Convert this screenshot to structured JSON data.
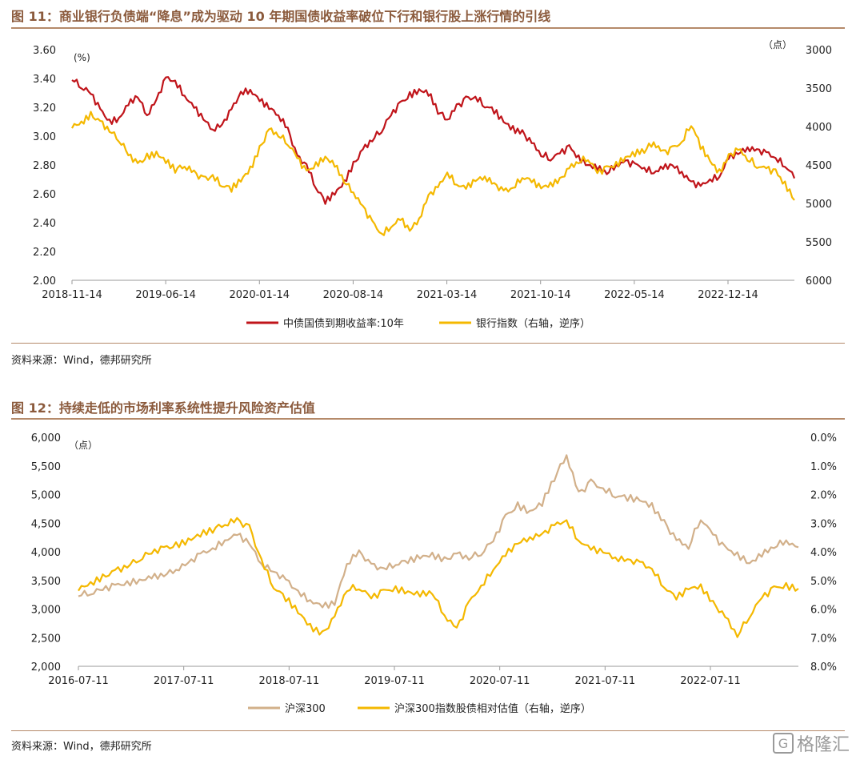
{
  "figures": [
    {
      "title": "图 11：商业银行负债端“降息”成为驱动 10 年期国债收益率破位下行和银行股上涨行情的引线",
      "source": "资料来源：Wind，德邦研究所"
    },
    {
      "title": "图 12：持续走低的市场利率系统性提升风险资产估值",
      "source": "资料来源：Wind，德邦研究所"
    }
  ],
  "watermark": {
    "icon": "gelonghui-logo-icon",
    "text": "格隆汇"
  },
  "colors": {
    "red": "#c0141a",
    "yellow": "#f4b800",
    "tan": "#d2b08a",
    "title": "#8b5a3c",
    "axis": "#999999"
  },
  "chart_data": [
    {
      "type": "line",
      "left_unit": "(%)",
      "right_unit": "（点）",
      "ylim_left": [
        2.0,
        3.6
      ],
      "yticks_left": [
        "3.60",
        "3.40",
        "3.20",
        "3.00",
        "2.80",
        "2.60",
        "2.40",
        "2.20",
        "2.00"
      ],
      "ylim_right_reversed": [
        3000,
        6000
      ],
      "yticks_right": [
        "3000",
        "3500",
        "4000",
        "4500",
        "5000",
        "5500",
        "6000"
      ],
      "x_ticks": [
        "2018-11-14",
        "2019-06-14",
        "2020-01-14",
        "2020-08-14",
        "2021-03-14",
        "2021-10-14",
        "2022-05-14",
        "2022-12-14"
      ],
      "series": [
        {
          "name": "中债国债到期收益率:10年",
          "axis": "left",
          "color": "#c0141a",
          "values": [
            3.4,
            3.35,
            3.3,
            3.18,
            3.1,
            3.12,
            3.22,
            3.28,
            3.15,
            3.25,
            3.4,
            3.38,
            3.28,
            3.2,
            3.12,
            3.05,
            3.08,
            3.18,
            3.3,
            3.32,
            3.25,
            3.2,
            3.15,
            3.05,
            2.85,
            2.8,
            2.65,
            2.55,
            2.6,
            2.68,
            2.8,
            2.9,
            2.98,
            3.05,
            3.15,
            3.22,
            3.28,
            3.32,
            3.3,
            3.18,
            3.12,
            3.2,
            3.25,
            3.27,
            3.22,
            3.18,
            3.1,
            3.05,
            3.02,
            2.95,
            2.88,
            2.85,
            2.88,
            2.92,
            2.85,
            2.8,
            2.78,
            2.75,
            2.8,
            2.82,
            2.8,
            2.78,
            2.75,
            2.78,
            2.8,
            2.75,
            2.68,
            2.65,
            2.7,
            2.72,
            2.85,
            2.88,
            2.92,
            2.9,
            2.88,
            2.85,
            2.8,
            2.72
          ]
        },
        {
          "name": "银行指数（右轴，逆序）",
          "axis": "right",
          "color": "#f4b800",
          "values": [
            4000,
            3950,
            3850,
            3950,
            4050,
            4150,
            4350,
            4500,
            4400,
            4350,
            4450,
            4550,
            4500,
            4600,
            4700,
            4650,
            4750,
            4800,
            4700,
            4550,
            4300,
            4050,
            4100,
            4200,
            4400,
            4600,
            4500,
            4400,
            4500,
            4700,
            4850,
            5050,
            5250,
            5400,
            5300,
            5200,
            5350,
            5200,
            4900,
            4800,
            4600,
            4750,
            4800,
            4700,
            4650,
            4750,
            4850,
            4800,
            4650,
            4700,
            4800,
            4750,
            4700,
            4550,
            4450,
            4400,
            4600,
            4550,
            4500,
            4400,
            4350,
            4300,
            4200,
            4350,
            4300,
            4200,
            3950,
            4250,
            4450,
            4600,
            4400,
            4300,
            4400,
            4500,
            4550,
            4600,
            4750,
            4950
          ]
        }
      ]
    },
    {
      "type": "line",
      "left_unit": "（点）",
      "ylim_left": [
        2000,
        6000
      ],
      "yticks_left": [
        "6,000",
        "5,500",
        "5,000",
        "4,500",
        "4,000",
        "3,500",
        "3,000",
        "2,500",
        "2,000"
      ],
      "ylim_right_reversed": [
        0.0,
        8.0
      ],
      "yticks_right": [
        "0.0%",
        "1.0%",
        "2.0%",
        "3.0%",
        "4.0%",
        "5.0%",
        "6.0%",
        "7.0%",
        "8.0%"
      ],
      "x_ticks": [
        "2016-07-11",
        "2017-07-11",
        "2018-07-11",
        "2019-07-11",
        "2020-07-11",
        "2021-07-11",
        "2022-07-11"
      ],
      "series": [
        {
          "name": "沪深300",
          "axis": "left",
          "color": "#d2b08a",
          "values": [
            3250,
            3300,
            3350,
            3400,
            3450,
            3500,
            3550,
            3600,
            3700,
            3800,
            3950,
            4050,
            4200,
            4300,
            4150,
            3800,
            3650,
            3500,
            3300,
            3150,
            3050,
            3100,
            3800,
            4000,
            3750,
            3700,
            3800,
            3850,
            3900,
            3950,
            3850,
            3950,
            3900,
            4000,
            4200,
            4600,
            4800,
            4700,
            4850,
            5300,
            5700,
            5000,
            5200,
            5100,
            5000,
            4950,
            4900,
            4800,
            4500,
            4200,
            4100,
            4600,
            4300,
            4050,
            3950,
            3800,
            3950,
            4100,
            4200,
            4050
          ]
        },
        {
          "name": "沪深300指数股债相对估值（右轴，逆序）",
          "axis": "right",
          "color": "#f4b800",
          "values": [
            5.3,
            5.1,
            4.9,
            4.7,
            4.5,
            4.2,
            4.0,
            3.9,
            3.8,
            3.6,
            3.4,
            3.2,
            3.0,
            2.9,
            3.2,
            4.3,
            5.2,
            5.6,
            6.1,
            6.6,
            6.9,
            6.3,
            5.3,
            5.2,
            5.6,
            5.4,
            5.3,
            5.4,
            5.5,
            5.4,
            6.2,
            6.7,
            5.8,
            5.2,
            4.6,
            4.1,
            3.7,
            3.5,
            3.4,
            3.1,
            2.9,
            3.6,
            3.9,
            4.0,
            4.2,
            4.3,
            4.4,
            4.6,
            5.2,
            5.6,
            5.3,
            5.2,
            5.8,
            6.3,
            6.9,
            6.2,
            5.6,
            5.3,
            5.2,
            5.3
          ]
        }
      ]
    }
  ]
}
